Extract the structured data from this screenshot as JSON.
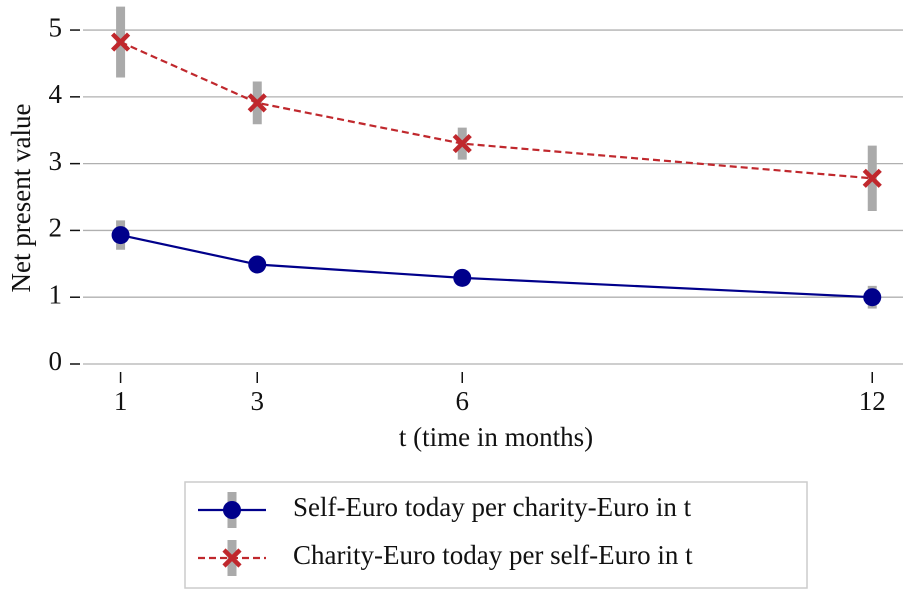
{
  "chart_data": {
    "type": "line",
    "x_label": "t (time in months)",
    "y_label": "Net present value",
    "x": [
      1,
      3,
      6,
      12
    ],
    "series": [
      {
        "name": "Self-Euro today per charity-Euro in t",
        "color": "#00008b",
        "marker": "circle",
        "linestyle": "solid",
        "values": [
          1.93,
          1.49,
          1.29,
          1.0
        ],
        "errors": [
          0.22,
          0.05,
          0.05,
          0.17
        ],
        "error_color": "#aaaaaa"
      },
      {
        "name": "Charity-Euro today per self-Euro in t",
        "color": "#c0282d",
        "marker": "x",
        "linestyle": "dashed",
        "values": [
          4.82,
          3.91,
          3.3,
          2.78
        ],
        "errors": [
          0.53,
          0.32,
          0.24,
          0.49
        ],
        "error_color": "#aaaaaa"
      }
    ],
    "xlim": [
      0.45,
      12.45
    ],
    "ylim": [
      0,
      5.45
    ],
    "xticks": [
      1,
      3,
      6,
      12
    ],
    "yticks": [
      0,
      1,
      2,
      3,
      4,
      5
    ],
    "grid": true,
    "legend": "bottom"
  }
}
